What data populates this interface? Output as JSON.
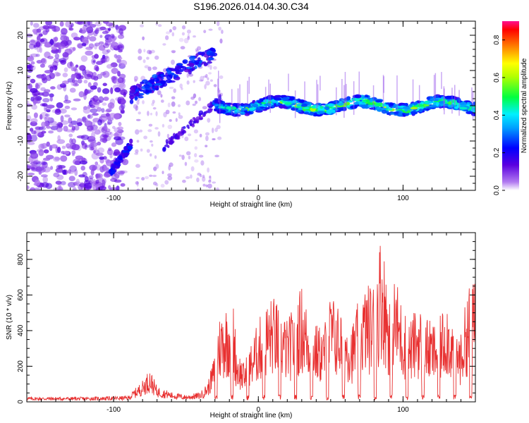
{
  "title": "S196.2026.014.04.30.C34",
  "chart_data": [
    {
      "type": "heatmap",
      "xlabel": "Height of straight line (km)",
      "ylabel": "Frequency (Hz)",
      "xlim": [
        -160,
        150
      ],
      "ylim": [
        -24,
        24
      ],
      "xticks": [
        -100,
        0,
        100
      ],
      "yticks": [
        -20,
        -10,
        0,
        10,
        20
      ],
      "colorbar": {
        "label": "Normalized spectral amplitude",
        "range": [
          0,
          0.9
        ],
        "ticks": [
          "0.0",
          "0.2",
          "0.4",
          "0.6",
          "0.8"
        ]
      },
      "features": [
        {
          "name": "main track",
          "x_range": [
            -30,
            150
          ],
          "frequency": 0
        },
        {
          "name": "upper branch",
          "x_range": [
            -88,
            -30
          ],
          "frequency": [
            3,
            17
          ]
        },
        {
          "name": "lower branch",
          "x_range": [
            -100,
            -88
          ],
          "frequency": [
            -18,
            -12
          ]
        },
        {
          "name": "noise",
          "x_range": [
            -160,
            -90
          ],
          "frequency": [
            -24,
            24
          ]
        }
      ]
    },
    {
      "type": "line",
      "xlabel": "Height of straight line (km)",
      "ylabel": "SNR (10 * v/v)",
      "xlim": [
        -160,
        150
      ],
      "ylim": [
        0,
        950
      ],
      "xticks": [
        -100,
        0,
        100
      ],
      "yticks": [
        0,
        200,
        400,
        600,
        800
      ],
      "color": "#e83030",
      "series": [
        {
          "x": [
            -160,
            -120,
            -90,
            -80,
            -75,
            -70,
            -60,
            -50,
            -40,
            -35,
            -30,
            -28,
            -25,
            -20,
            -18,
            -15,
            -10,
            -5,
            0,
            5,
            10,
            15,
            20,
            25,
            30,
            35,
            40,
            45,
            50,
            55,
            60,
            65,
            70,
            75,
            80,
            82,
            85,
            88,
            90,
            95,
            100,
            105,
            110,
            115,
            120,
            125,
            130,
            135,
            140,
            145,
            150
          ],
          "values": [
            25,
            25,
            30,
            110,
            170,
            80,
            50,
            35,
            50,
            100,
            250,
            420,
            480,
            520,
            620,
            280,
            200,
            300,
            420,
            500,
            550,
            480,
            420,
            500,
            600,
            450,
            400,
            380,
            560,
            500,
            450,
            400,
            550,
            600,
            620,
            720,
            900,
            700,
            580,
            650,
            480,
            420,
            500,
            450,
            400,
            420,
            550,
            400,
            350,
            600,
            620
          ]
        }
      ]
    }
  ]
}
